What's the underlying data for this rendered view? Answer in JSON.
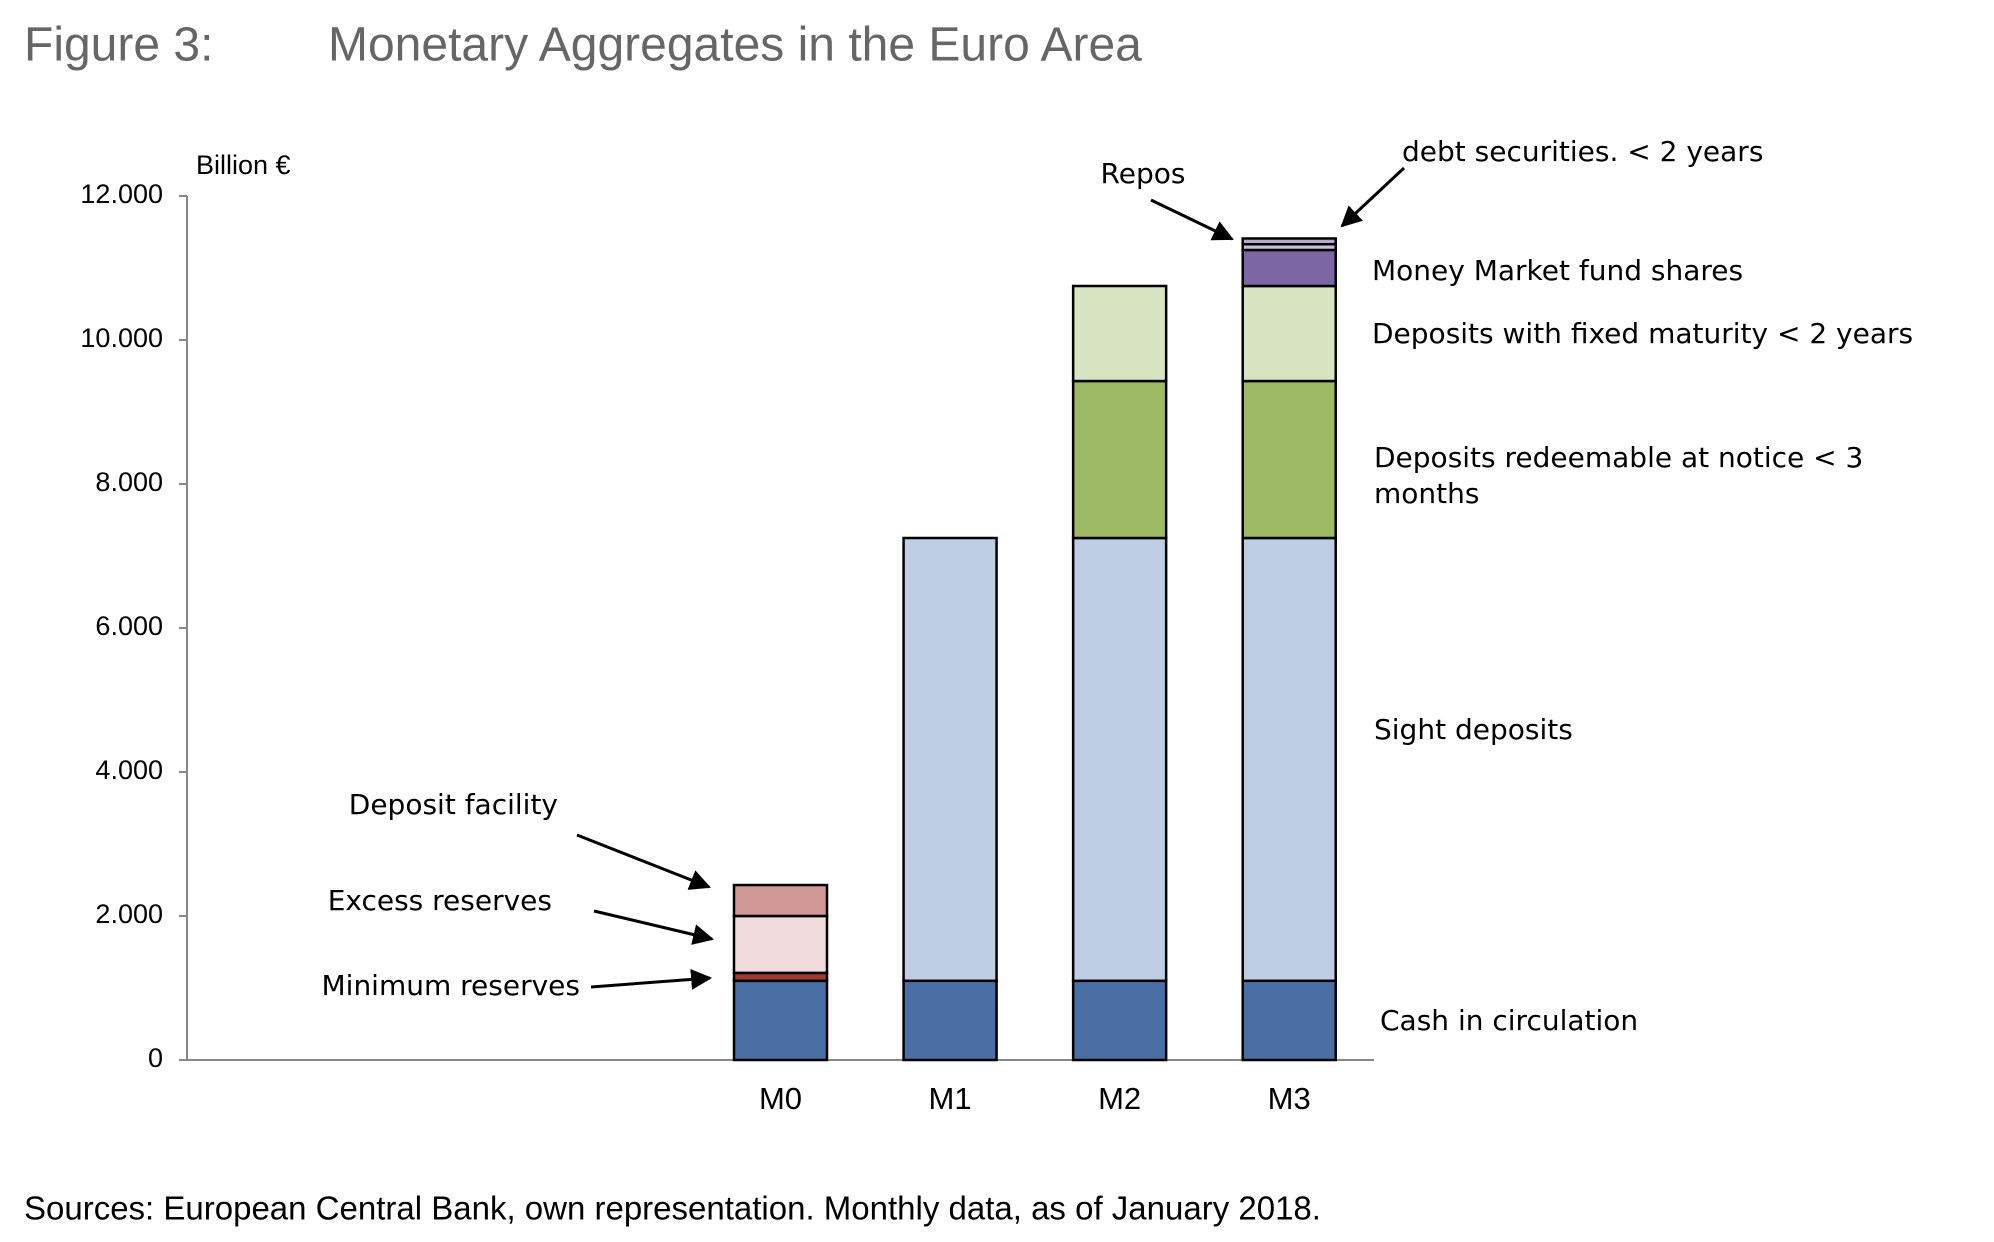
{
  "chart_data": {
    "type": "bar",
    "stacked": true,
    "title": "Monetary Aggregates in the Euro Area",
    "figure_label": "Figure 3:",
    "y_label": "Billion €",
    "note": "Sources: European Central Bank, own representation. Monthly data, as of January 2018.",
    "categories": [
      null,
      null,
      null,
      "M0",
      "M1",
      "M2",
      "M3"
    ],
    "ylim": [
      0,
      12000
    ],
    "yticks": [
      0,
      {
        "value": 2000,
        "label": "2.000"
      },
      {
        "value": 4000,
        "label": "4.000"
      },
      {
        "value": 6000,
        "label": "6.000"
      },
      {
        "value": 8000,
        "label": "8.000"
      },
      {
        "value": 10000,
        "label": "10.000"
      },
      {
        "value": 12000,
        "label": "12.000"
      }
    ],
    "series": [
      {
        "name": "Cash in circulation",
        "color": "#4a6fa5",
        "values": [
          null,
          null,
          null,
          1100,
          1100,
          1100,
          1100
        ]
      },
      {
        "name": "Minimum reserves",
        "color": "#a0392f",
        "values": [
          null,
          null,
          null,
          110,
          null,
          null,
          null
        ]
      },
      {
        "name": "Excess reserves",
        "color": "#f0dcdc",
        "values": [
          null,
          null,
          null,
          790,
          null,
          null,
          null
        ]
      },
      {
        "name": "Deposit facility",
        "color": "#d09896",
        "values": [
          null,
          null,
          null,
          430,
          null,
          null,
          null
        ]
      },
      {
        "name": "Sight deposits",
        "color": "#bccde4",
        "values": [
          null,
          null,
          null,
          null,
          6150,
          6150,
          6150
        ]
      },
      {
        "name": "Deposits redeemable at notice < 3 months",
        "color": "#9fba64",
        "values": [
          null,
          null,
          null,
          null,
          null,
          2180,
          2180
        ]
      },
      {
        "name": "Deposits with fixed maturity  < 2 years",
        "color": "#d8e4c1",
        "values": [
          null,
          null,
          null,
          null,
          null,
          1320,
          1320
        ]
      },
      {
        "name": "Money Market fund shares",
        "color": "#7c66a3",
        "values": [
          null,
          null,
          null,
          null,
          null,
          null,
          500
        ]
      },
      {
        "name": "Repos",
        "color": "#c9bcdc",
        "values": [
          null,
          null,
          null,
          null,
          null,
          null,
          80
        ]
      },
      {
        "name": "debt securities. < 2 years",
        "color": "#b8a9d0",
        "values": [
          null,
          null,
          null,
          null,
          null,
          null,
          80
        ]
      }
    ]
  }
}
